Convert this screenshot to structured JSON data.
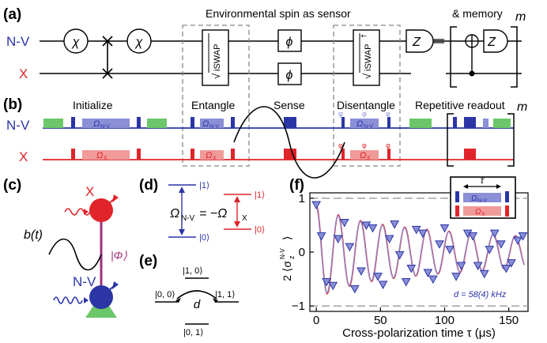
{
  "panels": {
    "a": "(a)",
    "b": "(b)",
    "c": "(c)",
    "d": "(d)",
    "e": "(e)",
    "f": "(f)"
  },
  "colors": {
    "nv": "#2b35a6",
    "x": "#e0242a",
    "nv_light": "#8b8fd6",
    "x_light": "#f09a9a",
    "green": "#6cc66a",
    "gray": "#777777"
  },
  "a": {
    "row_nv": "N-V",
    "row_x": "X",
    "sensor_title": "Environmental spin as sensor",
    "memory_title": "& memory",
    "m": "m",
    "chi": "χ",
    "phi": "ϕ",
    "sqrt": "√",
    "iswap": "iSWAP",
    "dagger": "†",
    "z": "Z",
    "icons": [
      "measurement-icon",
      "cnot-icon",
      "swap-icon"
    ]
  },
  "b": {
    "row_nv": "N-V",
    "row_x": "X",
    "labels": [
      "Initialize",
      "Entangle",
      "Sense",
      "Disentangle",
      "Repetitive readout"
    ],
    "m": "m",
    "omega_nv": "Ω",
    "omega_nv_sub": "N-V",
    "omega_x": "Ω",
    "omega_x_sub": "X",
    "phase": "φ"
  },
  "c": {
    "x_label": "X",
    "nv_label": "N-V",
    "b_t": "b(t)",
    "phi_state": "|Φ⟩"
  },
  "d": {
    "ket1": "|1⟩",
    "ket0": "|0⟩",
    "eq_omega": "Ω",
    "eq_sub": "N-V",
    "eq_mid": " = −Ω",
    "eq_sub2": "X"
  },
  "e": {
    "k10": "|1, 0⟩",
    "k00": "|0, 0⟩",
    "k11": "|1, 1⟩",
    "k01": "|0, 1⟩",
    "d": "d"
  },
  "f": {
    "ylabel_pre": "2 ⟨σ",
    "ylabel_sup": "N-V",
    "ylabel_sub": "z",
    "ylabel_post": "⟩",
    "xlabel": "Cross-polarization time τ (μs)",
    "fit_label": "d = 58(4) kHz",
    "inset_tau": "τ",
    "inset_nv": "Ω",
    "inset_nv_sub": "N-V",
    "inset_x": "Ω",
    "inset_x_sub": "X"
  },
  "chart_data": {
    "type": "scatter",
    "xlabel": "Cross-polarization time τ (μs)",
    "ylabel": "2 ⟨σz N-V⟩",
    "xlim": [
      -5,
      165
    ],
    "ylim": [
      -1.1,
      1.1
    ],
    "xticks": [
      0,
      50,
      100,
      150
    ],
    "yticks": [
      -1,
      0,
      1
    ],
    "reference_lines": [
      1,
      -1
    ],
    "fit_d_khz": 58,
    "series": [
      {
        "points": [
          [
            0,
            0.88
          ],
          [
            4,
            0.3
          ],
          [
            8,
            -0.55
          ],
          [
            13,
            -0.62
          ],
          [
            17,
            0.25
          ],
          [
            22,
            0.55
          ],
          [
            26,
            0.1
          ],
          [
            30,
            -0.68
          ],
          [
            35,
            -0.35
          ],
          [
            39,
            0.5
          ],
          [
            44,
            0.45
          ],
          [
            48,
            -0.45
          ],
          [
            52,
            -0.6
          ],
          [
            57,
            0.25
          ],
          [
            61,
            0.52
          ],
          [
            65,
            -0.05
          ],
          [
            70,
            -0.55
          ],
          [
            74,
            -0.3
          ],
          [
            78,
            0.42
          ],
          [
            83,
            0.35
          ],
          [
            87,
            -0.38
          ],
          [
            91,
            -0.5
          ],
          [
            96,
            0.15
          ],
          [
            100,
            0.45
          ],
          [
            104,
            0.05
          ],
          [
            109,
            -0.45
          ],
          [
            113,
            -0.25
          ],
          [
            118,
            0.35
          ],
          [
            122,
            0.3
          ],
          [
            126,
            -0.25
          ],
          [
            131,
            -0.4
          ],
          [
            135,
            0.05
          ],
          [
            139,
            0.35
          ],
          [
            144,
            0.15
          ],
          [
            148,
            -0.3
          ],
          [
            152,
            -0.2
          ],
          [
            157,
            0.22
          ],
          [
            161,
            0.3
          ]
        ]
      }
    ]
  }
}
